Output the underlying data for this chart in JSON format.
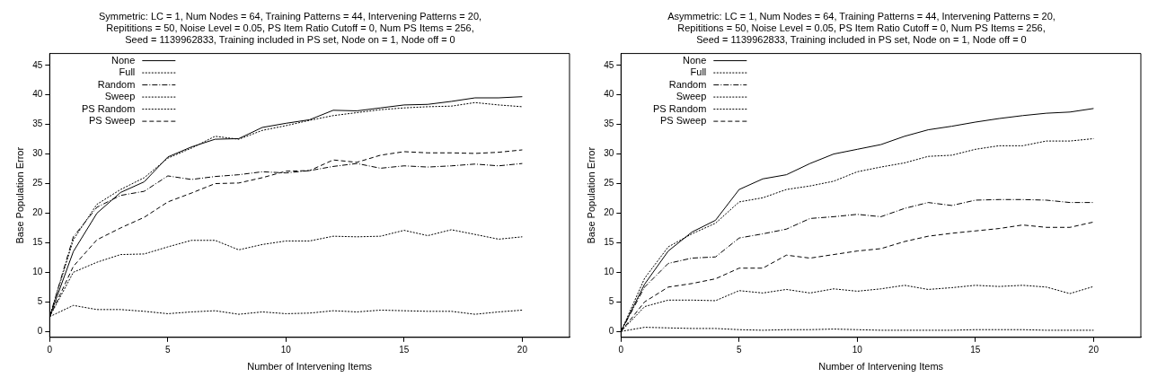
{
  "chart_data": [
    {
      "type": "line",
      "title": [
        "Symmetric: LC = 1, Num Nodes = 64, Training Patterns = 44, Intervening Patterns = 20,",
        "Repititions = 50, Noise Level = 0.05, PS Item Ratio Cutoff = 0, Num PS Items = 256,",
        "Seed = 1139962833, Training included in PS set, Node on = 1, Node off = 0"
      ],
      "xlabel": "Number of Intervening Items",
      "ylabel": "Base Population Error",
      "x": [
        0,
        1,
        2,
        3,
        4,
        5,
        6,
        7,
        8,
        9,
        10,
        11,
        12,
        13,
        14,
        15,
        16,
        17,
        18,
        19,
        20
      ],
      "xlim": [
        0,
        22
      ],
      "xticks": [
        0,
        5,
        10,
        15,
        20
      ],
      "ylim": [
        -1,
        47
      ],
      "yticks": [
        0,
        5,
        10,
        15,
        20,
        25,
        30,
        35,
        40,
        45
      ],
      "grid": false,
      "legend": "top left",
      "series": [
        {
          "name": "None",
          "color": "#000000",
          "line_style": "solid",
          "values": [
            2.5,
            13.5,
            20,
            23.5,
            25.3,
            29.5,
            31.2,
            32.5,
            32.6,
            34.5,
            35.2,
            35.8,
            37.4,
            37.3,
            37.8,
            38.3,
            38.4,
            38.9,
            39.5,
            39.5,
            39.7
          ]
        },
        {
          "name": "Full",
          "color": "#000000",
          "line_style": "dotted",
          "values": [
            2.5,
            4.4,
            3.7,
            3.7,
            3.4,
            3.0,
            3.3,
            3.5,
            2.9,
            3.3,
            3.0,
            3.1,
            3.5,
            3.3,
            3.6,
            3.5,
            3.4,
            3.4,
            2.9,
            3.3,
            3.6
          ]
        },
        {
          "name": "Random",
          "color": "#000000",
          "line_style": "dashdot",
          "values": [
            2.5,
            16,
            21,
            23,
            23.7,
            26.3,
            25.7,
            26.2,
            26.5,
            27,
            26.8,
            27.2,
            27.9,
            28.4,
            27.6,
            28,
            27.8,
            28,
            28.3,
            28,
            28.4
          ]
        },
        {
          "name": "Sweep",
          "color": "#000000",
          "line_style": "dotted",
          "values": [
            2.5,
            10,
            11.7,
            13,
            13.1,
            14.3,
            15.4,
            15.4,
            13.8,
            14.7,
            15.3,
            15.3,
            16.1,
            16,
            16.1,
            17.1,
            16.2,
            17.2,
            16.4,
            15.6,
            16
          ]
        },
        {
          "name": "PS Random",
          "color": "#000000",
          "line_style": "dotted",
          "values": [
            2.5,
            15.5,
            21.5,
            24,
            26,
            29.3,
            31,
            33,
            32.5,
            34,
            34.8,
            35.7,
            36.5,
            37,
            37.5,
            37.8,
            38,
            38.1,
            38.7,
            38.3,
            38
          ]
        },
        {
          "name": "PS Sweep",
          "color": "#000000",
          "line_style": "dashed",
          "values": [
            2.5,
            11,
            15.5,
            17.5,
            19.3,
            21.9,
            23.4,
            25,
            25.1,
            26,
            27.1,
            27.2,
            29,
            28.6,
            29.8,
            30.4,
            30.2,
            30.2,
            30.1,
            30.3,
            30.7
          ]
        }
      ]
    },
    {
      "type": "line",
      "title": [
        "Asymmetric: LC = 1, Num Nodes = 64, Training Patterns = 44, Intervening Patterns = 20,",
        "Repititions = 50, Noise Level = 0.05, PS Item Ratio Cutoff = 0, Num PS Items = 256,",
        "Seed = 1139962833, Training included in PS set, Node on = 1, Node off = 0"
      ],
      "xlabel": "Number of Intervening Items",
      "ylabel": "Base Population Error",
      "x": [
        0,
        1,
        2,
        3,
        4,
        5,
        6,
        7,
        8,
        9,
        10,
        11,
        12,
        13,
        14,
        15,
        16,
        17,
        18,
        19,
        20
      ],
      "xlim": [
        0,
        22
      ],
      "xticks": [
        0,
        5,
        10,
        15,
        20
      ],
      "ylim": [
        -1,
        47
      ],
      "yticks": [
        0,
        5,
        10,
        15,
        20,
        25,
        30,
        35,
        40,
        45
      ],
      "grid": false,
      "legend": "top left",
      "series": [
        {
          "name": "None",
          "color": "#000000",
          "line_style": "solid",
          "values": [
            0,
            8,
            13.6,
            16.8,
            18.8,
            24,
            25.8,
            26.5,
            28.4,
            30,
            30.8,
            31.6,
            33,
            34.1,
            34.7,
            35.4,
            36,
            36.5,
            36.9,
            37.1,
            37.7
          ]
        },
        {
          "name": "Full",
          "color": "#000000",
          "line_style": "dotted",
          "values": [
            0,
            0.7,
            0.6,
            0.5,
            0.5,
            0.3,
            0.2,
            0.3,
            0.3,
            0.4,
            0.3,
            0.2,
            0.2,
            0.2,
            0.2,
            0.3,
            0.3,
            0.3,
            0.2,
            0.2,
            0.2
          ]
        },
        {
          "name": "Random",
          "color": "#000000",
          "line_style": "dashdot",
          "values": [
            0,
            7.5,
            11.5,
            12.4,
            12.6,
            15.8,
            16.5,
            17.3,
            19.1,
            19.4,
            19.8,
            19.4,
            20.8,
            21.8,
            21.3,
            22.2,
            22.3,
            22.3,
            22.2,
            21.8,
            21.8
          ]
        },
        {
          "name": "Sweep",
          "color": "#000000",
          "line_style": "dotted",
          "values": [
            0,
            4.2,
            5.3,
            5.3,
            5.2,
            6.9,
            6.5,
            7.1,
            6.5,
            7.2,
            6.8,
            7.2,
            7.8,
            7.1,
            7.4,
            7.8,
            7.6,
            7.8,
            7.5,
            6.4,
            7.6
          ]
        },
        {
          "name": "PS Random",
          "color": "#000000",
          "line_style": "dotted",
          "values": [
            0,
            9,
            14.3,
            16.5,
            18.3,
            21.9,
            22.6,
            24,
            24.6,
            25.4,
            27,
            27.8,
            28.5,
            29.6,
            29.8,
            30.8,
            31.4,
            31.4,
            32.2,
            32.2,
            32.6
          ]
        },
        {
          "name": "PS Sweep",
          "color": "#000000",
          "line_style": "dashed",
          "values": [
            0,
            5,
            7.5,
            8.1,
            8.9,
            10.7,
            10.7,
            12.9,
            12.4,
            13,
            13.6,
            14,
            15.2,
            16.1,
            16.6,
            17,
            17.4,
            18,
            17.6,
            17.6,
            18.5
          ]
        }
      ]
    }
  ]
}
